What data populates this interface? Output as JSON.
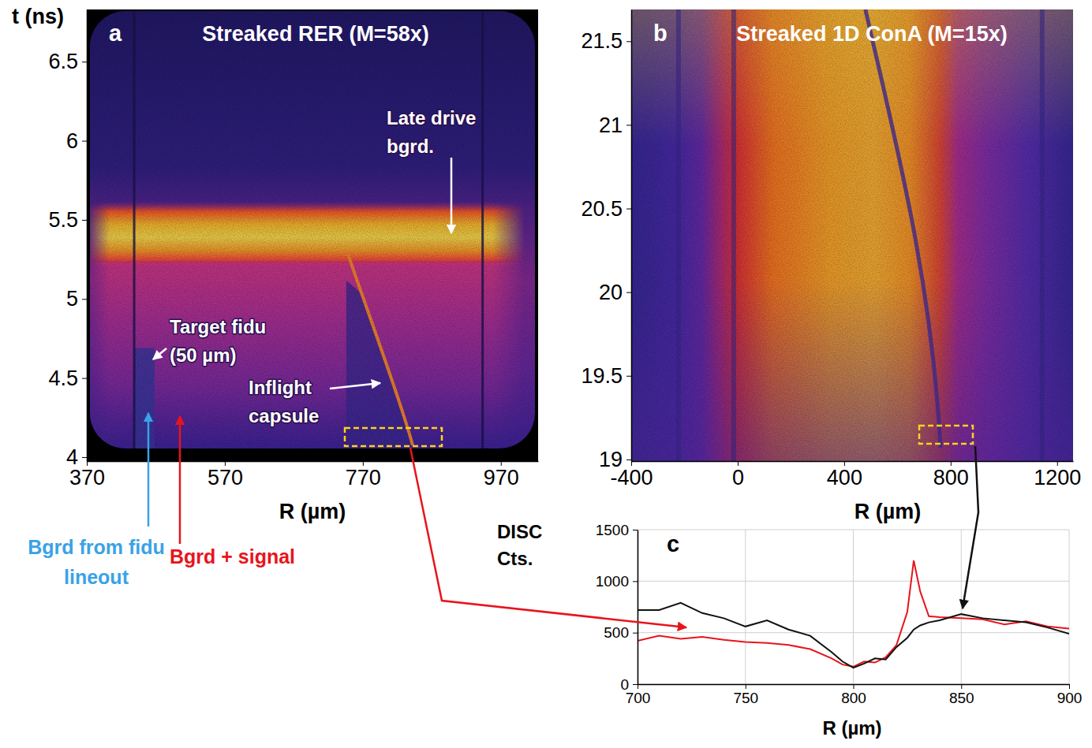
{
  "chart_data": [
    {
      "type": "image",
      "panel_label": "a",
      "title": "Streaked RER (M=58x)",
      "x_label": "R (µm)",
      "y_label": "t (ns)",
      "xlim": [
        370,
        1024
      ],
      "xticks": [
        370,
        570,
        770,
        970
      ],
      "ylim": [
        3.975,
        6.83
      ],
      "yticks": [
        4,
        4.5,
        5,
        5.5,
        6,
        6.5
      ],
      "annotations": [
        "Late drive bgrd.",
        "Target fidu (50 µm)",
        "Inflight capsule",
        "Bgrd from fidu lineout",
        "Bgrd + signal"
      ]
    },
    {
      "type": "image",
      "panel_label": "b",
      "title": "Streaked 1D ConA (M=15x)",
      "x_label": "R (µm)",
      "xlim": [
        -400,
        1260
      ],
      "xticks": [
        -400,
        0,
        400,
        800,
        1200
      ],
      "ylim": [
        18.99,
        21.69
      ],
      "yticks": [
        19,
        19.5,
        20,
        20.5,
        21,
        21.5
      ]
    },
    {
      "type": "line",
      "panel_label": "c",
      "x_label": "R (µm)",
      "y_label": "DISC Cts.",
      "xlim": [
        700,
        900
      ],
      "xticks": [
        700,
        750,
        800,
        850,
        900
      ],
      "ylim": [
        0,
        1500
      ],
      "yticks": [
        0,
        500,
        1000,
        1500
      ],
      "grid": true,
      "x": [
        700,
        710,
        720,
        730,
        740,
        750,
        760,
        770,
        780,
        790,
        795,
        800,
        805,
        810,
        815,
        820,
        825,
        828,
        831,
        835,
        840,
        850,
        860,
        870,
        880,
        890,
        900
      ],
      "series": [
        {
          "color": "#e8141c",
          "values": [
            420,
            470,
            440,
            460,
            430,
            410,
            400,
            380,
            340,
            250,
            190,
            170,
            220,
            210,
            260,
            380,
            700,
            1200,
            900,
            660,
            650,
            640,
            630,
            580,
            610,
            560,
            540
          ]
        },
        {
          "color": "#111111",
          "values": [
            720,
            720,
            790,
            690,
            640,
            560,
            620,
            530,
            470,
            310,
            220,
            160,
            200,
            250,
            240,
            360,
            450,
            530,
            570,
            600,
            620,
            680,
            640,
            620,
            600,
            550,
            490
          ]
        }
      ]
    }
  ]
}
